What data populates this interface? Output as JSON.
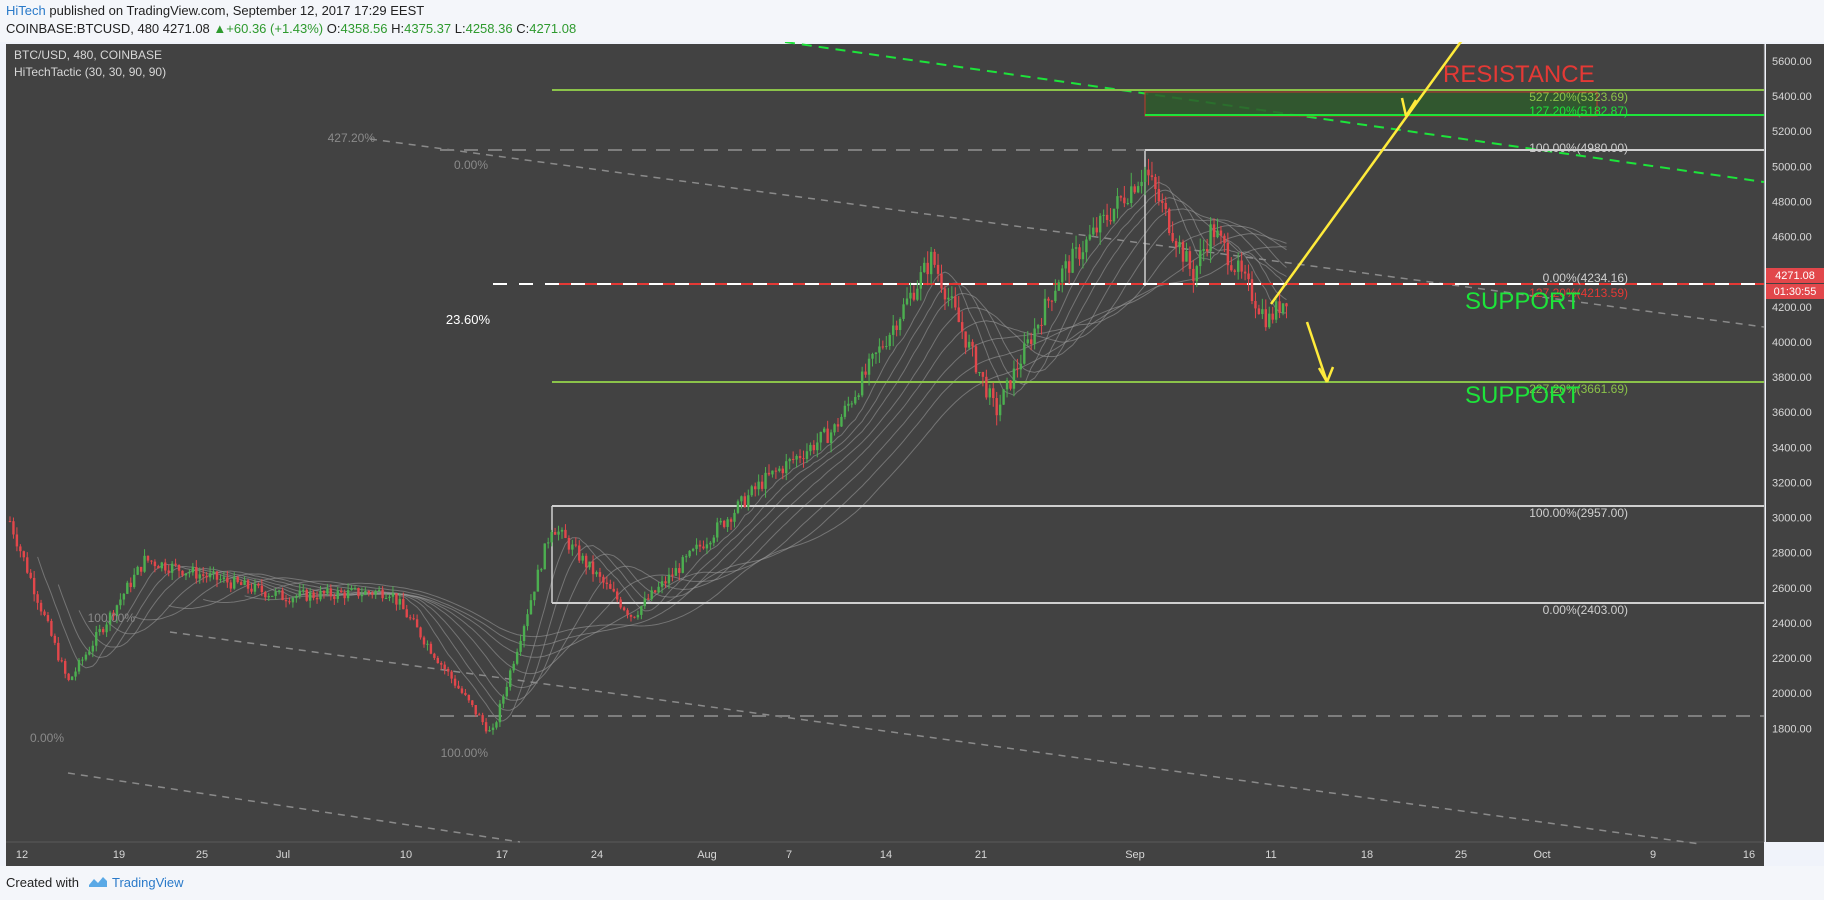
{
  "header": {
    "author": "HiTech",
    "published": "published on TradingView.com, September 12, 2017 17:29 EEST",
    "symbol_line": "COINBASE:BTCUSD, 480",
    "last": "4271.08",
    "change": "+60.36 (+1.43%)",
    "o_label": "O:",
    "o": "4358.56",
    "h_label": "H:",
    "h": "4375.37",
    "l_label": "L:",
    "l": "4258.36",
    "c_label": "C:",
    "c": "4271.08"
  },
  "chart": {
    "legend_symbol": "BTC/USD, 480, COINBASE",
    "legend_indicator": "HiTechTactic (30, 30, 90, 90)",
    "price_badge": "4271.08",
    "countdown_badge": "01:30:55",
    "annotations": {
      "resistance": "RESISTANCE",
      "support_upper": "SUPPORT",
      "support_lower": "SUPPORT",
      "fib_left_236": "23.60%"
    },
    "fib_labels": {
      "f527": "527.20%(5323.69)",
      "f127": "127.20%(5182.87)",
      "f100_top": "100.00%(4980.00)",
      "f0_mid": "0.00%(4234.16)",
      "f127_red": "127.20%(4213.59)",
      "f227": "227.20%(3661.69)",
      "f100_low": "100.00%(2957.00)",
      "f0_low": "0.00%(2403.00)",
      "f427_left": "427.20%",
      "f0_left_top": "0.00%",
      "f100_far_left": "100.00%",
      "f0_far_left": "0.00%",
      "f100_bottom": "100.00%"
    }
  },
  "chart_data": {
    "type": "candlestick",
    "symbol": "BTC/USD",
    "interval": "480",
    "exchange": "COINBASE",
    "ylim": [
      1720,
      5640
    ],
    "y_ticks": [
      "5600.00",
      "5400.00",
      "5200.00",
      "5000.00",
      "4800.00",
      "4600.00",
      "4400.00",
      "4200.00",
      "4000.00",
      "3800.00",
      "3600.00",
      "3400.00",
      "3200.00",
      "3000.00",
      "2800.00",
      "2600.00",
      "2400.00",
      "2200.00",
      "2000.00",
      "1800.00"
    ],
    "x_ticks": [
      "12",
      "19",
      "25",
      "Jul",
      "10",
      "17",
      "24",
      "Aug",
      "7",
      "14",
      "21",
      "Sep",
      "11",
      "18",
      "25",
      "Oct",
      "9",
      "16"
    ],
    "key_points": [
      {
        "x": "Jun 12",
        "y": 2980
      },
      {
        "x": "Jun 15",
        "y": 2060
      },
      {
        "x": "Jun 22",
        "y": 2760
      },
      {
        "x": "Jul 1",
        "y": 2550
      },
      {
        "x": "Jul 9",
        "y": 2580
      },
      {
        "x": "Jul 16",
        "y": 1760
      },
      {
        "x": "Jul 20",
        "y": 2957
      },
      {
        "x": "Jul 28",
        "y": 2440
      },
      {
        "x": "Aug 5",
        "y": 3200
      },
      {
        "x": "Aug 10",
        "y": 3500
      },
      {
        "x": "Aug 16",
        "y": 4480
      },
      {
        "x": "Aug 22",
        "y": 3600
      },
      {
        "x": "Aug 27",
        "y": 4380
      },
      {
        "x": "Sep 1",
        "y": 4980
      },
      {
        "x": "Sep 6",
        "y": 4380
      },
      {
        "x": "Sep 8",
        "y": 4650
      },
      {
        "x": "Sep 11",
        "y": 4120
      },
      {
        "x": "Sep 12",
        "y": 4271
      }
    ],
    "fib_levels": [
      {
        "label": "527.20%",
        "value": 5323.69
      },
      {
        "label": "127.20%",
        "value": 5182.87
      },
      {
        "label": "100.00%",
        "value": 4980.0
      },
      {
        "label": "0.00%",
        "value": 4234.16
      },
      {
        "label": "127.20%",
        "value": 4213.59
      },
      {
        "label": "227.20%",
        "value": 3661.69
      },
      {
        "label": "100.00%",
        "value": 2957.0
      },
      {
        "label": "0.00%",
        "value": 2403.0
      }
    ],
    "indicator": "HiTechTactic (30, 30, 90, 90)",
    "colors": {
      "up": "#4caf50",
      "down": "#e2474b",
      "background": "#424242",
      "fib": "#8bc34a",
      "resistance_text": "#e53935",
      "support_text": "#1de43a",
      "arrow": "#ffeb3b"
    },
    "grid": false
  }
}
